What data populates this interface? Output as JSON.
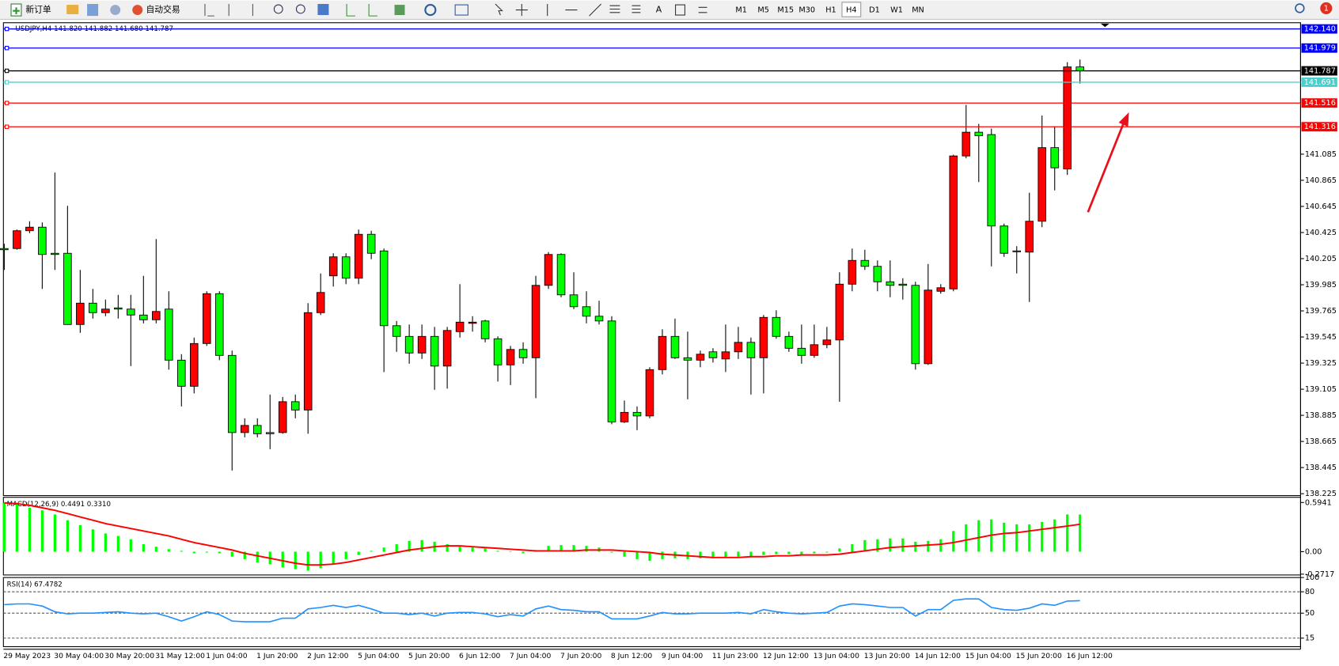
{
  "toolbar": {
    "new_order": "新订单",
    "auto_trading": "自动交易",
    "timeframes": [
      "M1",
      "M5",
      "M15",
      "M30",
      "H1",
      "H4",
      "D1",
      "W1",
      "MN"
    ],
    "active_timeframe": "H4",
    "notifications": "1"
  },
  "chart_data": [
    {
      "type": "candlestick",
      "title": "USDJPY,H4  141.820 141.882 141.680 141.787",
      "categories": [
        "29 May 2023",
        null,
        null,
        null,
        "30 May 04:00",
        null,
        null,
        null,
        "30 May 20:00",
        null,
        null,
        null,
        "31 May 12:00",
        null,
        null,
        null,
        "1 Jun 04:00",
        null,
        null,
        null,
        "1 Jun 20:00",
        null,
        null,
        null,
        "2 Jun 12:00",
        null,
        null,
        null,
        "5 Jun 04:00",
        null,
        null,
        null,
        "5 Jun 20:00",
        null,
        null,
        null,
        "6 Jun 12:00",
        null,
        null,
        null,
        "7 Jun 04:00",
        null,
        null,
        null,
        "7 Jun 20:00",
        null,
        null,
        null,
        "8 Jun 12:00",
        null,
        null,
        null,
        "9 Jun 04:00",
        null,
        null,
        null,
        "11 Jun 23:00",
        null,
        null,
        null,
        "12 Jun 12:00",
        null,
        null,
        null,
        "13 Jun 04:00",
        null,
        null,
        null,
        "13 Jun 20:00",
        null,
        null,
        null,
        "14 Jun 12:00",
        null,
        null,
        null,
        "15 Jun 04:00",
        null,
        null,
        null,
        "15 Jun 20:00",
        null,
        null,
        null,
        "16 Jun 12:00",
        null
      ],
      "open": [
        140.29,
        140.29,
        140.44,
        140.47,
        140.25,
        140.25,
        139.65,
        139.83,
        139.75,
        139.79,
        139.78,
        139.73,
        139.69,
        139.78,
        139.35,
        139.13,
        139.49,
        139.91,
        139.39,
        138.74,
        138.8,
        138.74,
        138.74,
        139.0,
        138.93,
        139.75,
        140.06,
        140.22,
        140.04,
        140.41,
        140.27,
        139.64,
        139.55,
        139.41,
        139.55,
        139.3,
        139.59,
        139.66,
        139.68,
        139.53,
        139.31,
        139.44,
        139.37,
        139.98,
        140.24,
        139.9,
        139.8,
        139.72,
        139.68,
        138.83,
        138.91,
        138.88,
        139.27,
        139.55,
        139.37,
        139.35,
        139.42,
        139.36,
        139.42,
        139.5,
        139.37,
        139.71,
        139.55,
        139.45,
        139.39,
        139.48,
        139.52,
        139.99,
        140.19,
        140.14,
        140.01,
        139.99,
        139.98,
        139.32,
        139.93,
        139.95,
        141.07,
        141.27,
        141.25,
        140.48,
        140.27,
        140.26,
        140.52,
        141.14,
        140.96,
        141.82
      ],
      "high": [
        140.33,
        140.45,
        140.52,
        140.51,
        140.93,
        140.65,
        140.11,
        139.95,
        139.86,
        139.9,
        139.9,
        140.06,
        140.37,
        139.93,
        139.4,
        139.54,
        139.93,
        139.93,
        139.43,
        138.86,
        138.86,
        139.06,
        139.04,
        139.06,
        139.83,
        140.08,
        140.25,
        140.25,
        140.45,
        140.44,
        140.29,
        139.68,
        139.65,
        139.65,
        139.63,
        139.63,
        139.99,
        139.72,
        139.69,
        139.55,
        139.47,
        139.5,
        140.06,
        140.26,
        140.25,
        140.09,
        139.93,
        139.85,
        139.72,
        139.01,
        138.96,
        139.29,
        139.61,
        139.7,
        139.59,
        139.43,
        139.45,
        139.65,
        139.63,
        139.54,
        139.73,
        139.77,
        139.59,
        139.65,
        139.65,
        139.63,
        140.09,
        140.29,
        140.28,
        140.19,
        140.19,
        140.04,
        140.01,
        140.16,
        139.99,
        141.08,
        141.5,
        141.34,
        141.3,
        140.5,
        140.31,
        140.76,
        141.41,
        141.32,
        141.86,
        141.882
      ],
      "low": [
        140.11,
        140.28,
        140.42,
        139.95,
        140.11,
        139.65,
        139.58,
        139.7,
        139.72,
        139.7,
        139.3,
        139.66,
        139.66,
        139.27,
        138.96,
        139.07,
        139.47,
        139.35,
        138.42,
        138.7,
        138.7,
        138.6,
        138.73,
        138.86,
        138.73,
        139.73,
        139.97,
        139.99,
        139.99,
        140.2,
        139.25,
        139.42,
        139.32,
        139.36,
        139.1,
        139.11,
        139.54,
        139.59,
        139.5,
        139.17,
        139.14,
        139.32,
        139.03,
        139.95,
        139.88,
        139.78,
        139.66,
        139.65,
        138.81,
        138.82,
        138.76,
        138.86,
        139.23,
        139.36,
        139.02,
        139.29,
        139.33,
        139.25,
        139.36,
        139.06,
        139.07,
        139.53,
        139.42,
        139.32,
        139.37,
        139.45,
        139.0,
        139.93,
        140.11,
        139.93,
        139.88,
        139.86,
        139.27,
        139.31,
        139.91,
        139.93,
        141.05,
        140.85,
        140.14,
        140.22,
        140.08,
        139.84,
        140.47,
        140.78,
        140.91,
        141.68
      ],
      "close": [
        140.28,
        140.44,
        140.47,
        140.24,
        140.24,
        139.65,
        139.83,
        139.75,
        139.78,
        139.78,
        139.73,
        139.69,
        139.76,
        139.35,
        139.13,
        139.49,
        139.91,
        139.39,
        138.74,
        138.8,
        138.73,
        138.73,
        139.0,
        138.93,
        139.75,
        139.92,
        140.22,
        140.04,
        140.41,
        140.25,
        139.64,
        139.55,
        139.41,
        139.55,
        139.3,
        139.6,
        139.67,
        139.67,
        139.53,
        139.31,
        139.44,
        139.37,
        139.98,
        140.24,
        139.9,
        139.8,
        139.72,
        139.68,
        138.83,
        138.91,
        138.88,
        139.27,
        139.55,
        139.37,
        139.35,
        139.4,
        139.37,
        139.42,
        139.5,
        139.37,
        139.71,
        139.55,
        139.45,
        139.39,
        139.48,
        139.52,
        139.99,
        140.19,
        140.14,
        140.01,
        139.98,
        139.98,
        139.32,
        139.94,
        139.96,
        141.07,
        141.27,
        141.24,
        140.48,
        140.25,
        140.27,
        140.52,
        141.14,
        140.97,
        141.82,
        141.787
      ],
      "up_color": "#ff0000",
      "down_color": "#00ff00",
      "ylim": [
        138.209,
        142.192
      ],
      "yticks": [
        141.085,
        140.865,
        140.645,
        140.425,
        140.205,
        139.985,
        139.765,
        139.545,
        139.325,
        139.105,
        138.885,
        138.665,
        138.445,
        138.225
      ],
      "levels": [
        {
          "value": 142.14,
          "label": "142.140",
          "color": "#0000ff"
        },
        {
          "value": 141.979,
          "label": "141.979",
          "color": "#0000ff"
        },
        {
          "value": 141.787,
          "label": "141.787",
          "color": "#000000"
        },
        {
          "value": 141.691,
          "label": "141.691",
          "color": "#48d1cc"
        },
        {
          "value": 141.516,
          "label": "141.516",
          "color": "#ff0000"
        },
        {
          "value": 141.316,
          "label": "141.316",
          "color": "#ff0000"
        }
      ]
    },
    {
      "type": "macd",
      "title": "MACD(12,26,9) 0.4491 0.3310",
      "histogram": {
        "color": "#00ff00",
        "values": [
          0.59,
          0.58,
          0.53,
          0.5,
          0.45,
          0.38,
          0.32,
          0.27,
          0.22,
          0.19,
          0.15,
          0.09,
          0.06,
          0.03,
          0.01,
          -0.02,
          -0.01,
          -0.02,
          -0.06,
          -0.09,
          -0.13,
          -0.15,
          -0.19,
          -0.21,
          -0.23,
          -0.2,
          -0.15,
          -0.09,
          -0.04,
          0.01,
          0.05,
          0.09,
          0.13,
          0.14,
          0.12,
          0.09,
          0.06,
          0.05,
          0.04,
          0.01,
          0,
          -0.02,
          0.02,
          0.07,
          0.08,
          0.08,
          0.07,
          0.05,
          -0.01,
          -0.06,
          -0.09,
          -0.11,
          -0.09,
          -0.08,
          -0.09,
          -0.08,
          -0.08,
          -0.07,
          -0.06,
          -0.06,
          -0.04,
          -0.03,
          -0.03,
          -0.03,
          -0.02,
          -0.01,
          0.04,
          0.09,
          0.14,
          0.15,
          0.16,
          0.16,
          0.12,
          0.13,
          0.15,
          0.25,
          0.33,
          0.38,
          0.39,
          0.35,
          0.33,
          0.33,
          0.36,
          0.39,
          0.45,
          0.4491
        ]
      },
      "signal": {
        "color": "#ff0000",
        "values": [
          0.59,
          0.58,
          0.56,
          0.53,
          0.5,
          0.46,
          0.42,
          0.38,
          0.34,
          0.31,
          0.28,
          0.25,
          0.22,
          0.19,
          0.15,
          0.11,
          0.08,
          0.05,
          0.02,
          -0.02,
          -0.05,
          -0.08,
          -0.11,
          -0.14,
          -0.16,
          -0.16,
          -0.15,
          -0.13,
          -0.1,
          -0.07,
          -0.04,
          -0.01,
          0.02,
          0.04,
          0.06,
          0.07,
          0.07,
          0.06,
          0.05,
          0.04,
          0.03,
          0.02,
          0.01,
          0.01,
          0.01,
          0.01,
          0.02,
          0.02,
          0.02,
          0.01,
          0,
          -0.01,
          -0.03,
          -0.04,
          -0.05,
          -0.06,
          -0.07,
          -0.07,
          -0.07,
          -0.06,
          -0.06,
          -0.05,
          -0.05,
          -0.04,
          -0.04,
          -0.04,
          -0.03,
          -0.01,
          0.01,
          0.03,
          0.05,
          0.06,
          0.07,
          0.08,
          0.09,
          0.11,
          0.14,
          0.17,
          0.2,
          0.22,
          0.23,
          0.25,
          0.27,
          0.29,
          0.31,
          0.331
        ]
      },
      "ylim": [
        -0.2815,
        0.657
      ],
      "yticks": [
        0.5941,
        {
          "value": 0,
          "label": "0.00"
        },
        -0.2717
      ]
    },
    {
      "type": "line",
      "title": "RSI(14) 67.4782",
      "color": "#1e90ff",
      "values": [
        62,
        63,
        63,
        60,
        52,
        49,
        50,
        50,
        51,
        52,
        50,
        49,
        50,
        45,
        39,
        45,
        52,
        48,
        39,
        38,
        38,
        38,
        43,
        43,
        56,
        58,
        61,
        58,
        61,
        56,
        50,
        50,
        48,
        50,
        46,
        50,
        51,
        51,
        49,
        45,
        48,
        46,
        56,
        60,
        55,
        54,
        52,
        52,
        42,
        42,
        42,
        46,
        51,
        49,
        49,
        50,
        50,
        50,
        51,
        49,
        55,
        52,
        50,
        49,
        50,
        51,
        60,
        63,
        62,
        60,
        58,
        58,
        46,
        55,
        55,
        68,
        70,
        70,
        58,
        55,
        54,
        57,
        63,
        61,
        67,
        67.4782
      ],
      "ylim": [
        3,
        100
      ],
      "yticks": [
        100,
        80,
        50,
        15
      ],
      "levels": [
        80,
        50,
        15
      ]
    }
  ]
}
